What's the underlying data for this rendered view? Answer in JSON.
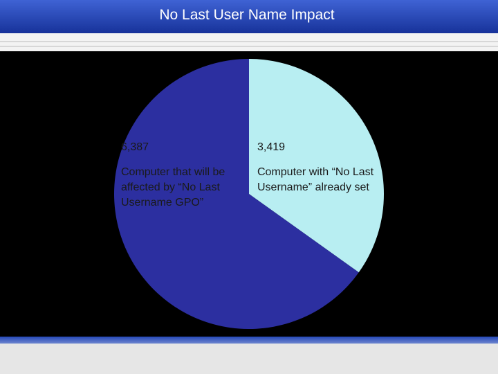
{
  "chart_data": {
    "type": "pie",
    "title": "No Last User Name Impact",
    "categories": [
      "Computer with “No Last Username” already set",
      "Computer that will be affected by “No Last Username GPO”"
    ],
    "values": [
      3419,
      6387
    ],
    "value_labels": [
      "3,419",
      "6,387"
    ],
    "colors": [
      "#b8eef2",
      "#2c2fa0"
    ]
  }
}
